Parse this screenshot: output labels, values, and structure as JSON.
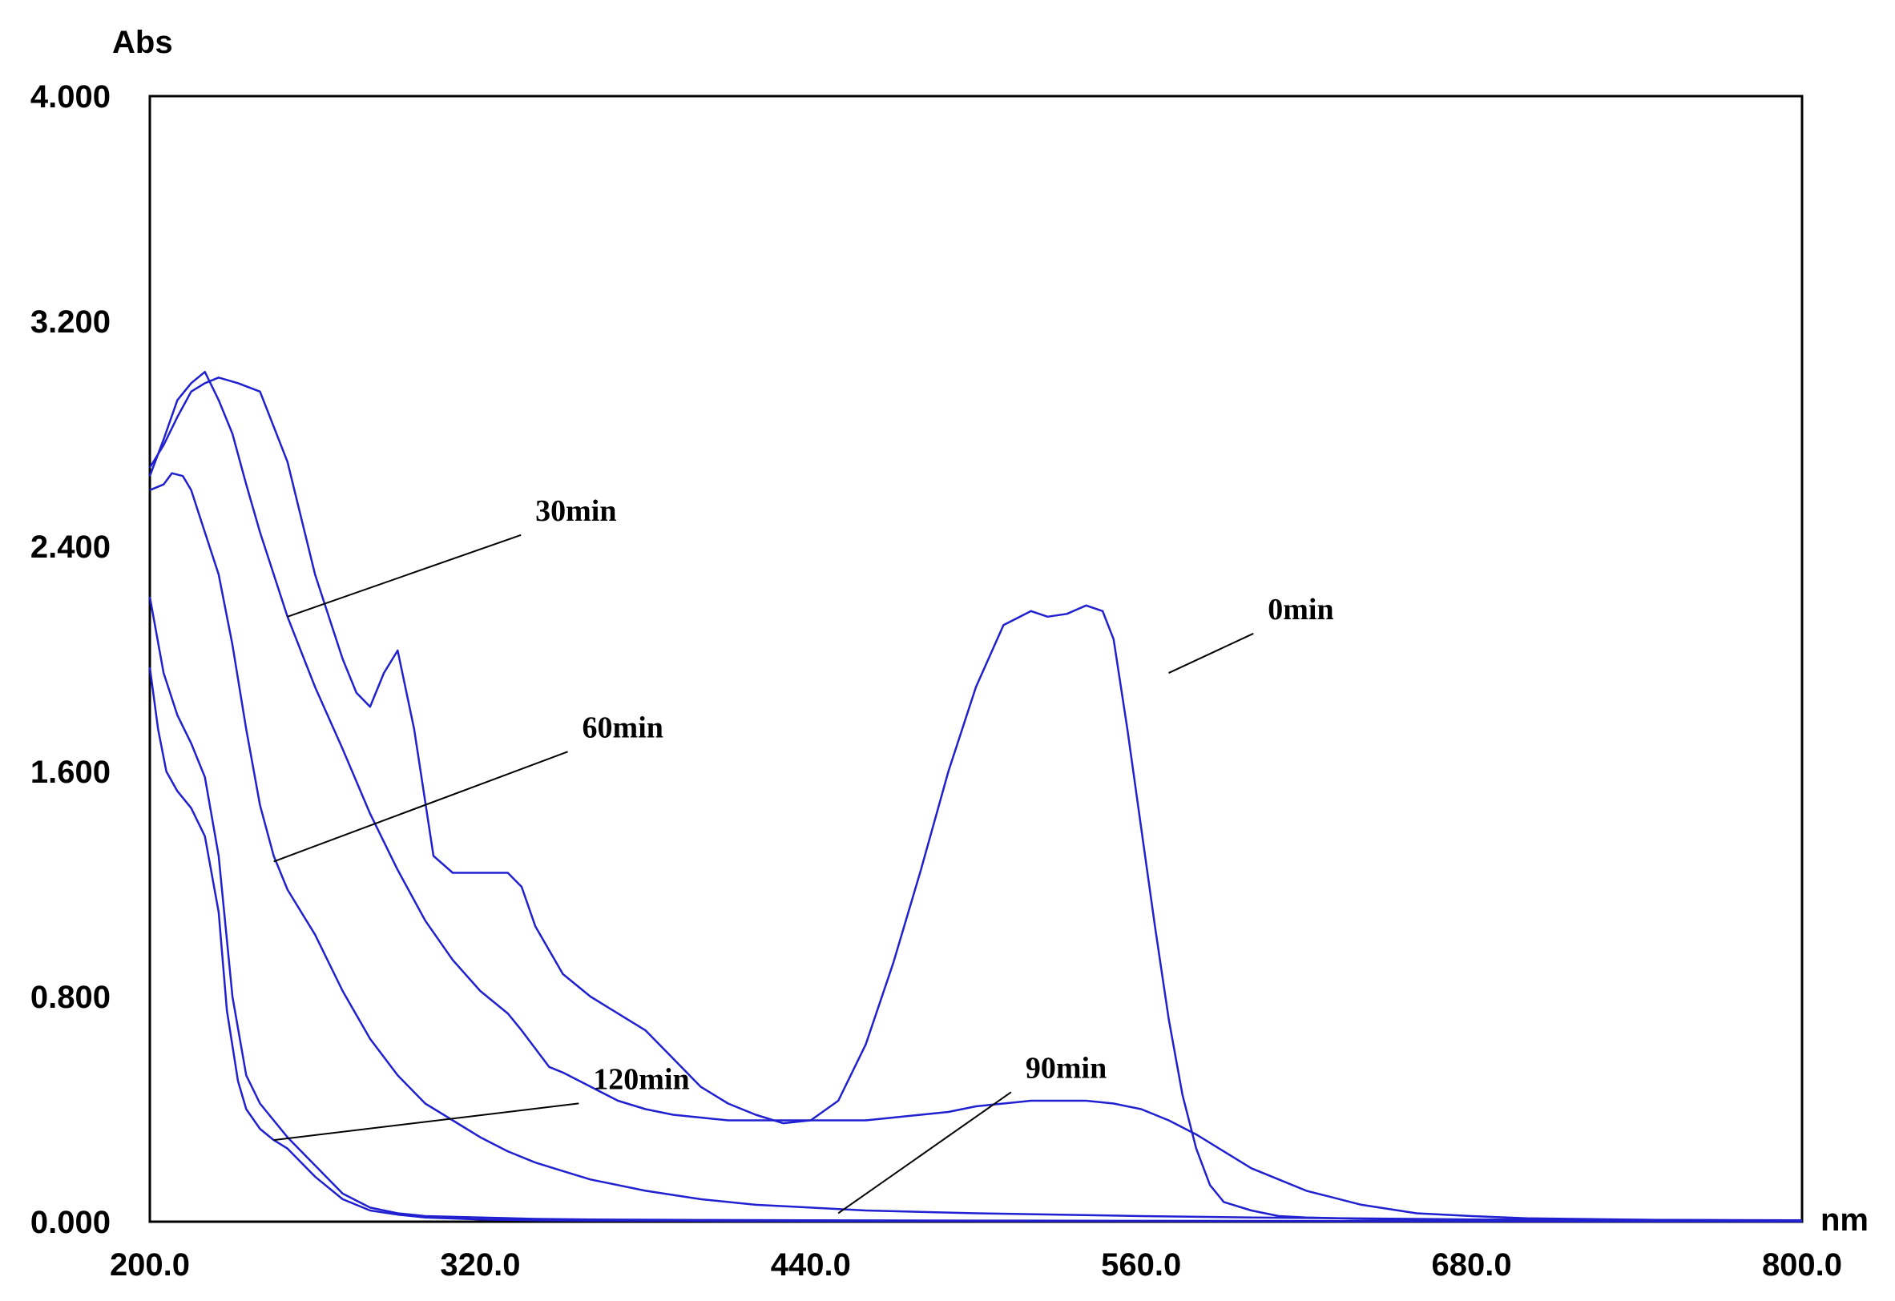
{
  "chart_data": {
    "type": "line",
    "title": "",
    "xlabel": "nm",
    "ylabel": "Abs",
    "xlim": [
      200,
      800
    ],
    "ylim": [
      0,
      4
    ],
    "grid": false,
    "x_ticks": [
      "200.0",
      "320.0",
      "440.0",
      "560.0",
      "680.0",
      "800.0"
    ],
    "y_ticks": [
      "0.000",
      "0.800",
      "1.600",
      "2.400",
      "3.200",
      "4.000"
    ],
    "line_color": "#2020d0",
    "series": [
      {
        "name": "0min",
        "x": [
          200,
          205,
          210,
          215,
          220,
          225,
          232,
          240,
          250,
          260,
          270,
          275,
          280,
          285,
          290,
          296,
          303,
          310,
          320,
          330,
          335,
          340,
          350,
          360,
          370,
          380,
          390,
          400,
          410,
          420,
          430,
          440,
          450,
          460,
          470,
          480,
          490,
          500,
          510,
          520,
          526,
          533,
          540,
          546,
          550,
          555,
          560,
          565,
          570,
          575,
          580,
          585,
          590,
          600,
          610,
          620,
          640,
          660,
          680,
          700,
          750,
          800
        ],
        "y": [
          2.68,
          2.76,
          2.86,
          2.95,
          2.98,
          3.0,
          2.98,
          2.95,
          2.7,
          2.3,
          2.0,
          1.88,
          1.83,
          1.95,
          2.03,
          1.75,
          1.3,
          1.24,
          1.24,
          1.24,
          1.19,
          1.05,
          0.88,
          0.8,
          0.74,
          0.68,
          0.58,
          0.48,
          0.42,
          0.38,
          0.35,
          0.36,
          0.43,
          0.63,
          0.92,
          1.25,
          1.6,
          1.9,
          2.12,
          2.17,
          2.15,
          2.16,
          2.19,
          2.17,
          2.07,
          1.75,
          1.4,
          1.05,
          0.72,
          0.45,
          0.26,
          0.13,
          0.07,
          0.04,
          0.02,
          0.015,
          0.01,
          0.008,
          0.005,
          0.004,
          0.003,
          0.002
        ]
      },
      {
        "name": "30min",
        "x": [
          200,
          205,
          210,
          215,
          220,
          225,
          230,
          235,
          240,
          250,
          260,
          270,
          280,
          290,
          300,
          310,
          320,
          330,
          335,
          345,
          350,
          360,
          370,
          380,
          390,
          400,
          410,
          420,
          430,
          440,
          450,
          460,
          470,
          480,
          490,
          500,
          510,
          520,
          530,
          540,
          550,
          560,
          570,
          580,
          590,
          600,
          610,
          620,
          640,
          660,
          680,
          700,
          750,
          800
        ],
        "y": [
          2.65,
          2.78,
          2.92,
          2.98,
          3.02,
          2.92,
          2.8,
          2.62,
          2.45,
          2.15,
          1.9,
          1.68,
          1.45,
          1.25,
          1.07,
          0.93,
          0.82,
          0.74,
          0.68,
          0.55,
          0.53,
          0.48,
          0.43,
          0.4,
          0.38,
          0.37,
          0.36,
          0.36,
          0.36,
          0.36,
          0.36,
          0.36,
          0.37,
          0.38,
          0.39,
          0.41,
          0.42,
          0.43,
          0.43,
          0.43,
          0.42,
          0.4,
          0.36,
          0.31,
          0.25,
          0.19,
          0.15,
          0.11,
          0.06,
          0.03,
          0.02,
          0.012,
          0.006,
          0.004
        ]
      },
      {
        "name": "60min",
        "x": [
          200,
          205,
          208,
          212,
          215,
          220,
          225,
          230,
          235,
          240,
          245,
          250,
          260,
          270,
          280,
          290,
          300,
          310,
          320,
          330,
          340,
          350,
          360,
          370,
          380,
          400,
          420,
          440,
          460,
          500,
          560,
          600,
          680,
          800
        ],
        "y": [
          2.6,
          2.62,
          2.66,
          2.65,
          2.6,
          2.45,
          2.3,
          2.05,
          1.75,
          1.48,
          1.3,
          1.18,
          1.02,
          0.82,
          0.65,
          0.52,
          0.42,
          0.36,
          0.3,
          0.25,
          0.21,
          0.18,
          0.15,
          0.13,
          0.11,
          0.08,
          0.06,
          0.05,
          0.04,
          0.03,
          0.02,
          0.015,
          0.008,
          0.005
        ]
      },
      {
        "name": "90min",
        "x": [
          200,
          205,
          210,
          215,
          220,
          225,
          230,
          235,
          240,
          245,
          250,
          260,
          270,
          280,
          290,
          300,
          320,
          340,
          360,
          400,
          440,
          500,
          560,
          680,
          800
        ],
        "y": [
          2.22,
          1.95,
          1.8,
          1.7,
          1.58,
          1.3,
          0.8,
          0.52,
          0.42,
          0.36,
          0.3,
          0.2,
          0.1,
          0.05,
          0.03,
          0.02,
          0.015,
          0.01,
          0.008,
          0.006,
          0.005,
          0.004,
          0.003,
          0.002,
          0.002
        ]
      },
      {
        "name": "120min",
        "x": [
          200,
          203,
          206,
          210,
          215,
          220,
          225,
          228,
          232,
          235,
          240,
          245,
          250,
          255,
          260,
          270,
          280,
          290,
          300,
          320,
          340,
          360,
          400,
          440,
          500,
          560,
          680,
          800
        ],
        "y": [
          1.97,
          1.75,
          1.6,
          1.53,
          1.47,
          1.37,
          1.1,
          0.75,
          0.5,
          0.4,
          0.33,
          0.29,
          0.26,
          0.21,
          0.16,
          0.08,
          0.04,
          0.025,
          0.015,
          0.008,
          0.005,
          0.004,
          0.003,
          0.002,
          0.002,
          0.002,
          0.001,
          0.001
        ]
      }
    ],
    "annotations": [
      {
        "text": "30min",
        "target_series": "30min",
        "target": [
          250,
          2.15
        ],
        "text_at": [
          340,
          2.52
        ]
      },
      {
        "text": "60min",
        "target_series": "60min",
        "target": [
          245,
          1.28
        ],
        "text_at": [
          357,
          1.75
        ]
      },
      {
        "text": "120min",
        "target_series": "120min",
        "target": [
          245,
          0.29
        ],
        "text_at": [
          361,
          0.5
        ]
      },
      {
        "text": "90min",
        "target_series": "90min",
        "target": [
          450,
          0.03
        ],
        "text_at": [
          518,
          0.54
        ]
      },
      {
        "text": "0min",
        "target_series": "0min",
        "target": [
          570,
          1.95
        ],
        "text_at": [
          606,
          2.17
        ]
      }
    ]
  }
}
